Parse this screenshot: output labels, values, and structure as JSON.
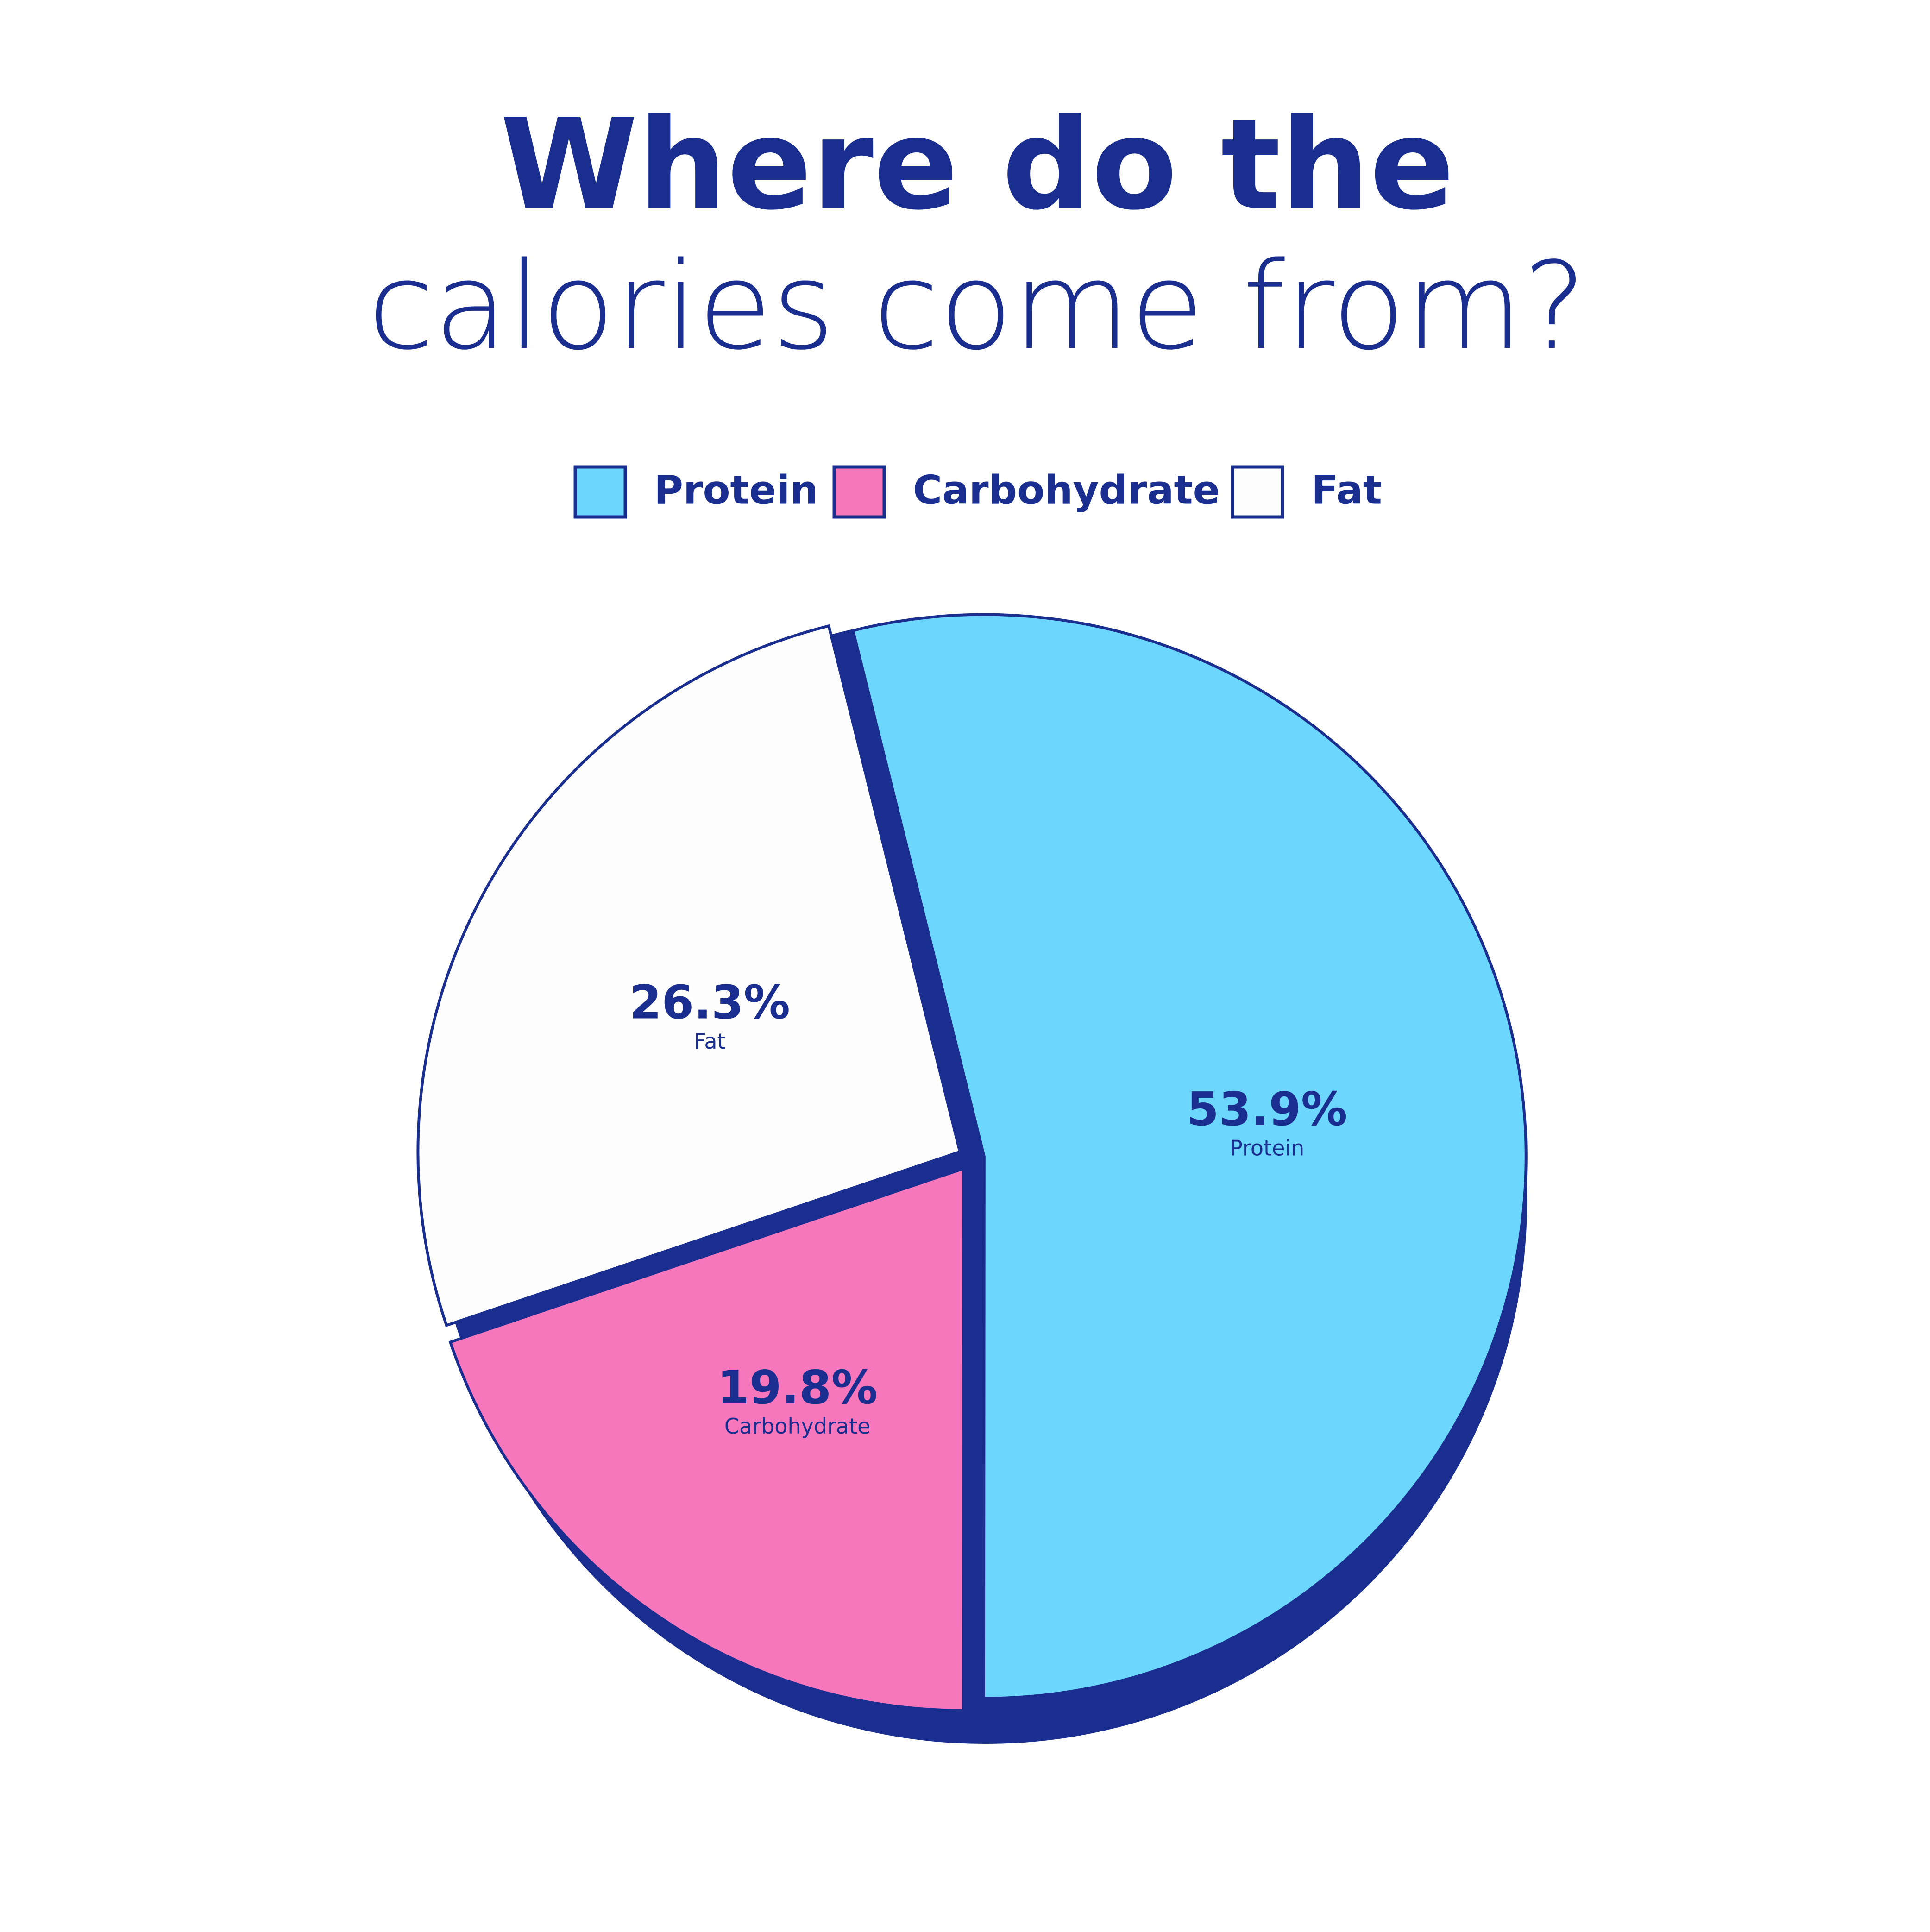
{
  "chart_data": {
    "type": "pie",
    "title_lines": [
      "Where do the",
      "calories come from?"
    ],
    "categories": [
      "Protein",
      "Carbohydrate",
      "Fat"
    ],
    "values": [
      53.9,
      19.8,
      26.3
    ],
    "value_labels": [
      "53.9%",
      "19.8%",
      "26.3%"
    ],
    "colors": [
      "#6dd6fc",
      "#f777bd",
      "#fdfdfd"
    ],
    "legend": "top"
  }
}
